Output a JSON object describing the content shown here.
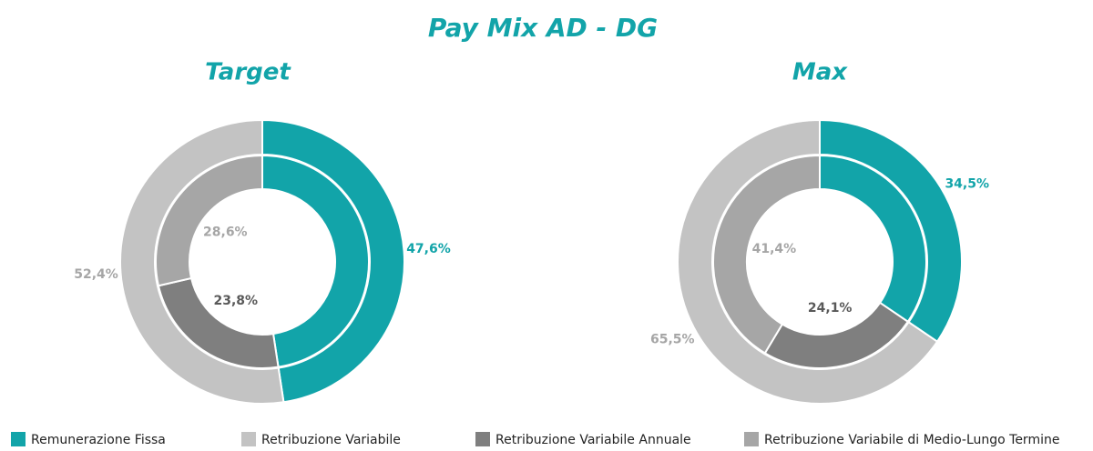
{
  "title": "Pay Mix AD - DG",
  "legend": {
    "names": [
      "Remunerazione Fissa",
      "Retribuzione Variabile",
      "Retribuzione Variabile Annuale",
      "Retribuzione Variabile di Medio-Lungo Termine"
    ],
    "colors": [
      "#12a4a9",
      "#c3c3c3",
      "#7f7f7f",
      "#a6a6a6"
    ]
  },
  "chart_data": [
    {
      "type": "donut",
      "title": "Target",
      "rings": [
        {
          "names": [
            "Remunerazione Fissa",
            "Retribuzione Variabile"
          ],
          "colors": [
            "#12a4a9",
            "#c3c3c3"
          ],
          "values": [
            47.6,
            52.4
          ],
          "value_labels": [
            "47,6%",
            "52,4%"
          ]
        },
        {
          "names": [
            "Remunerazione Fissa",
            "Retribuzione Variabile Annuale",
            "Retribuzione Variabile di Medio-Lungo Termine"
          ],
          "colors": [
            "#12a4a9",
            "#7f7f7f",
            "#a6a6a6"
          ],
          "values": [
            47.6,
            23.8,
            28.6
          ],
          "value_labels": [
            null,
            "23,8%",
            "28,6%"
          ]
        }
      ]
    },
    {
      "type": "donut",
      "title": "Max",
      "rings": [
        {
          "names": [
            "Remunerazione Fissa",
            "Retribuzione Variabile"
          ],
          "colors": [
            "#12a4a9",
            "#c3c3c3"
          ],
          "values": [
            34.5,
            65.5
          ],
          "value_labels": [
            "34,5%",
            "65,5%"
          ]
        },
        {
          "names": [
            "Remunerazione Fissa",
            "Retribuzione Variabile Annuale",
            "Retribuzione Variabile di Medio-Lungo Termine"
          ],
          "colors": [
            "#12a4a9",
            "#7f7f7f",
            "#a6a6a6"
          ],
          "values": [
            34.5,
            24.1,
            41.4
          ],
          "value_labels": [
            null,
            "24,1%",
            "41,4%"
          ]
        }
      ]
    }
  ]
}
